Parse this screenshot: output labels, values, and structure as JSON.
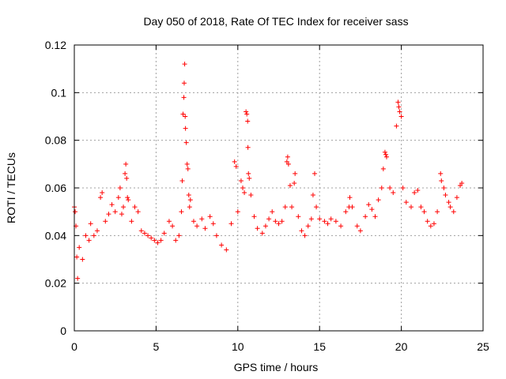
{
  "chart_data": {
    "type": "scatter",
    "title": "Day 050 of 2018, Rate Of TEC Index for receiver sass",
    "xlabel": "GPS time / hours",
    "ylabel": "ROTI / TECUs",
    "xlim": [
      0,
      25
    ],
    "ylim": [
      0,
      0.12
    ],
    "xticks": [
      0,
      5,
      10,
      15,
      20,
      25
    ],
    "yticks": [
      0,
      0.02,
      0.04,
      0.06,
      0.08,
      0.1,
      0.12
    ],
    "xtick_labels": [
      "0",
      "5",
      "10",
      "15",
      "20",
      "25"
    ],
    "ytick_labels": [
      "0",
      "0.02",
      "0.04",
      "0.06",
      "0.08",
      "0.1",
      "0.12"
    ],
    "grid": true,
    "marker": "+",
    "color": "#ff0000",
    "series": [
      {
        "name": "ROTI",
        "points": [
          [
            0.0,
            0.052
          ],
          [
            0.05,
            0.05
          ],
          [
            0.1,
            0.044
          ],
          [
            0.15,
            0.031
          ],
          [
            0.2,
            0.022
          ],
          [
            0.3,
            0.035
          ],
          [
            0.5,
            0.03
          ],
          [
            0.7,
            0.04
          ],
          [
            0.9,
            0.038
          ],
          [
            1.0,
            0.045
          ],
          [
            1.2,
            0.04
          ],
          [
            1.4,
            0.042
          ],
          [
            1.6,
            0.056
          ],
          [
            1.7,
            0.058
          ],
          [
            1.9,
            0.046
          ],
          [
            2.1,
            0.049
          ],
          [
            2.3,
            0.053
          ],
          [
            2.5,
            0.05
          ],
          [
            2.7,
            0.056
          ],
          [
            2.8,
            0.06
          ],
          [
            2.9,
            0.049
          ],
          [
            3.0,
            0.052
          ],
          [
            3.1,
            0.066
          ],
          [
            3.15,
            0.07
          ],
          [
            3.2,
            0.064
          ],
          [
            3.25,
            0.056
          ],
          [
            3.3,
            0.055
          ],
          [
            3.5,
            0.046
          ],
          [
            3.7,
            0.052
          ],
          [
            3.9,
            0.05
          ],
          [
            4.1,
            0.042
          ],
          [
            4.3,
            0.041
          ],
          [
            4.5,
            0.04
          ],
          [
            4.7,
            0.039
          ],
          [
            4.9,
            0.038
          ],
          [
            5.1,
            0.037
          ],
          [
            5.3,
            0.038
          ],
          [
            5.5,
            0.041
          ],
          [
            5.8,
            0.046
          ],
          [
            6.0,
            0.044
          ],
          [
            6.2,
            0.038
          ],
          [
            6.4,
            0.04
          ],
          [
            6.55,
            0.05
          ],
          [
            6.6,
            0.063
          ],
          [
            6.65,
            0.091
          ],
          [
            6.7,
            0.098
          ],
          [
            6.72,
            0.104
          ],
          [
            6.75,
            0.112
          ],
          [
            6.78,
            0.09
          ],
          [
            6.8,
            0.085
          ],
          [
            6.85,
            0.079
          ],
          [
            6.9,
            0.07
          ],
          [
            6.95,
            0.068
          ],
          [
            7.0,
            0.057
          ],
          [
            7.05,
            0.052
          ],
          [
            7.1,
            0.055
          ],
          [
            7.3,
            0.046
          ],
          [
            7.5,
            0.044
          ],
          [
            7.8,
            0.047
          ],
          [
            8.0,
            0.043
          ],
          [
            8.3,
            0.048
          ],
          [
            8.5,
            0.045
          ],
          [
            8.7,
            0.04
          ],
          [
            9.0,
            0.036
          ],
          [
            9.3,
            0.034
          ],
          [
            9.6,
            0.045
          ],
          [
            9.8,
            0.071
          ],
          [
            9.9,
            0.069
          ],
          [
            10.0,
            0.05
          ],
          [
            10.2,
            0.063
          ],
          [
            10.3,
            0.06
          ],
          [
            10.4,
            0.058
          ],
          [
            10.5,
            0.092
          ],
          [
            10.55,
            0.091
          ],
          [
            10.6,
            0.088
          ],
          [
            10.62,
            0.077
          ],
          [
            10.65,
            0.066
          ],
          [
            10.7,
            0.064
          ],
          [
            10.8,
            0.057
          ],
          [
            11.0,
            0.048
          ],
          [
            11.2,
            0.043
          ],
          [
            11.5,
            0.041
          ],
          [
            11.7,
            0.044
          ],
          [
            11.9,
            0.047
          ],
          [
            12.1,
            0.05
          ],
          [
            12.3,
            0.046
          ],
          [
            12.5,
            0.045
          ],
          [
            12.7,
            0.046
          ],
          [
            12.9,
            0.052
          ],
          [
            13.0,
            0.071
          ],
          [
            13.05,
            0.073
          ],
          [
            13.1,
            0.07
          ],
          [
            13.2,
            0.061
          ],
          [
            13.3,
            0.052
          ],
          [
            13.45,
            0.062
          ],
          [
            13.5,
            0.066
          ],
          [
            13.7,
            0.048
          ],
          [
            13.9,
            0.042
          ],
          [
            14.1,
            0.04
          ],
          [
            14.3,
            0.044
          ],
          [
            14.5,
            0.047
          ],
          [
            14.6,
            0.057
          ],
          [
            14.7,
            0.066
          ],
          [
            14.8,
            0.052
          ],
          [
            15.0,
            0.047
          ],
          [
            15.3,
            0.046
          ],
          [
            15.5,
            0.045
          ],
          [
            15.7,
            0.047
          ],
          [
            16.0,
            0.046
          ],
          [
            16.3,
            0.044
          ],
          [
            16.6,
            0.05
          ],
          [
            16.8,
            0.052
          ],
          [
            16.85,
            0.056
          ],
          [
            17.0,
            0.052
          ],
          [
            17.3,
            0.044
          ],
          [
            17.5,
            0.042
          ],
          [
            17.8,
            0.048
          ],
          [
            18.0,
            0.053
          ],
          [
            18.2,
            0.051
          ],
          [
            18.4,
            0.048
          ],
          [
            18.6,
            0.055
          ],
          [
            18.8,
            0.06
          ],
          [
            18.9,
            0.068
          ],
          [
            19.0,
            0.075
          ],
          [
            19.05,
            0.074
          ],
          [
            19.1,
            0.073
          ],
          [
            19.3,
            0.06
          ],
          [
            19.5,
            0.058
          ],
          [
            19.7,
            0.086
          ],
          [
            19.8,
            0.096
          ],
          [
            19.85,
            0.094
          ],
          [
            19.9,
            0.092
          ],
          [
            20.0,
            0.09
          ],
          [
            20.1,
            0.06
          ],
          [
            20.3,
            0.054
          ],
          [
            20.6,
            0.052
          ],
          [
            20.8,
            0.058
          ],
          [
            21.0,
            0.059
          ],
          [
            21.2,
            0.052
          ],
          [
            21.4,
            0.05
          ],
          [
            21.6,
            0.046
          ],
          [
            21.8,
            0.044
          ],
          [
            22.0,
            0.045
          ],
          [
            22.2,
            0.05
          ],
          [
            22.4,
            0.066
          ],
          [
            22.45,
            0.063
          ],
          [
            22.6,
            0.06
          ],
          [
            22.7,
            0.057
          ],
          [
            22.9,
            0.054
          ],
          [
            23.0,
            0.052
          ],
          [
            23.2,
            0.05
          ],
          [
            23.4,
            0.056
          ],
          [
            23.6,
            0.061
          ],
          [
            23.7,
            0.062
          ]
        ]
      }
    ]
  }
}
